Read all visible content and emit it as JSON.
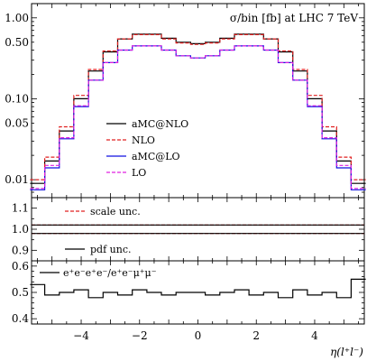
{
  "chart_data": [
    {
      "type": "line",
      "panel": "main",
      "title": "σ/bin [fb]  at LHC 7 TeV",
      "ylabel": "",
      "xlabel": "",
      "yscale": "log",
      "ylim": [
        0.006,
        1.5
      ],
      "xlim": [
        -5.7,
        5.7
      ],
      "yticks": [
        0.01,
        0.05,
        0.1,
        0.5,
        1.0
      ],
      "ytick_labels": [
        "0.01",
        "0.05",
        "0.10",
        "0.50",
        "1.00"
      ],
      "legend_position": "center-left",
      "x": [
        -5.5,
        -5.0,
        -4.5,
        -4.0,
        -3.5,
        -3.0,
        -2.5,
        -2.0,
        -1.5,
        -1.0,
        -0.5,
        0.0,
        0.5,
        1.0,
        1.5,
        2.0,
        2.5,
        3.0,
        3.5,
        4.0,
        4.5,
        5.0,
        5.5
      ],
      "series": [
        {
          "name": "aMC@NLO",
          "color": "#000000",
          "dash": "solid",
          "values": [
            0.009,
            0.017,
            0.04,
            0.1,
            0.22,
            0.38,
            0.55,
            0.63,
            0.63,
            0.56,
            0.5,
            0.48,
            0.5,
            0.56,
            0.63,
            0.63,
            0.55,
            0.38,
            0.22,
            0.1,
            0.04,
            0.017,
            0.009
          ]
        },
        {
          "name": "NLO",
          "color": "#e02020",
          "dash": "dashed",
          "values": [
            0.01,
            0.019,
            0.045,
            0.11,
            0.23,
            0.39,
            0.55,
            0.62,
            0.62,
            0.55,
            0.49,
            0.47,
            0.49,
            0.55,
            0.62,
            0.62,
            0.55,
            0.39,
            0.23,
            0.11,
            0.045,
            0.019,
            0.01
          ]
        },
        {
          "name": "aMC@LO",
          "color": "#1010e0",
          "dash": "solid",
          "values": [
            0.0075,
            0.014,
            0.032,
            0.08,
            0.17,
            0.28,
            0.4,
            0.45,
            0.45,
            0.4,
            0.34,
            0.32,
            0.34,
            0.4,
            0.45,
            0.45,
            0.4,
            0.28,
            0.17,
            0.08,
            0.032,
            0.014,
            0.0075
          ]
        },
        {
          "name": "LO",
          "color": "#e020e0",
          "dash": "dashed",
          "values": [
            0.0078,
            0.015,
            0.033,
            0.082,
            0.17,
            0.28,
            0.4,
            0.45,
            0.45,
            0.4,
            0.34,
            0.32,
            0.34,
            0.4,
            0.45,
            0.45,
            0.4,
            0.28,
            0.17,
            0.082,
            0.033,
            0.015,
            0.0078
          ]
        }
      ]
    },
    {
      "type": "line",
      "panel": "ratio-unc",
      "ylim": [
        0.85,
        1.15
      ],
      "xlim": [
        -5.7,
        5.7
      ],
      "yticks": [
        0.9,
        1.0,
        1.1
      ],
      "ytick_labels": [
        "0.9",
        "1.0",
        "1.1"
      ],
      "series": [
        {
          "name": "scale unc.",
          "color": "#e02020",
          "dash": "dashed",
          "values_upper": 1.02,
          "values_lower": 0.98
        },
        {
          "name": "pdf unc.",
          "color": "#000000",
          "dash": "solid",
          "values_upper": 1.02,
          "values_lower": 0.98
        }
      ]
    },
    {
      "type": "line",
      "panel": "ratio-channel",
      "ylim": [
        0.38,
        0.62
      ],
      "xlim": [
        -5.7,
        5.7
      ],
      "yticks": [
        0.4,
        0.5,
        0.6
      ],
      "ytick_labels": [
        "0.4",
        "0.5",
        "0.6"
      ],
      "xticks": [
        -4,
        -2,
        0,
        2,
        4
      ],
      "xtick_labels": [
        "−4",
        "−2",
        "0",
        "2",
        "4"
      ],
      "xlabel": "η(l⁺l⁻)",
      "series": [
        {
          "name": "e⁺e⁻e⁺e⁻/e⁺e⁻μ⁺μ⁻",
          "color": "#000000",
          "dash": "solid",
          "x": [
            -5.5,
            -5.0,
            -4.5,
            -4.0,
            -3.5,
            -3.0,
            -2.5,
            -2.0,
            -1.5,
            -1.0,
            -0.5,
            0.0,
            0.5,
            1.0,
            1.5,
            2.0,
            2.5,
            3.0,
            3.5,
            4.0,
            4.5,
            5.0,
            5.5
          ],
          "values": [
            0.53,
            0.49,
            0.5,
            0.51,
            0.48,
            0.5,
            0.49,
            0.51,
            0.5,
            0.49,
            0.5,
            0.5,
            0.49,
            0.5,
            0.51,
            0.49,
            0.5,
            0.48,
            0.51,
            0.49,
            0.5,
            0.48,
            0.55
          ]
        }
      ]
    }
  ]
}
